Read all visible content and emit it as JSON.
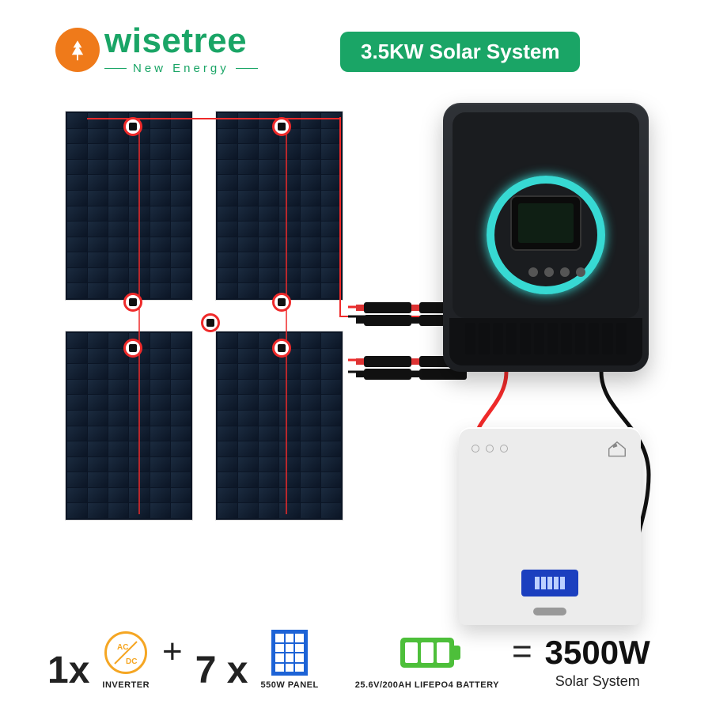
{
  "brand": {
    "name_part1": "wise",
    "name_part2": "tree",
    "tagline": "New Energy",
    "primary_color": "#1aa566",
    "sun_color": "#ef7a1a"
  },
  "title": "3.5KW Solar System",
  "title_bg": "#1aa566",
  "title_text_color": "#ffffff",
  "panels": {
    "count_shown": 4,
    "cell_grid": {
      "cols": 6,
      "rows": 12
    },
    "cell_dark": "#0b1525",
    "cell_light": "#1b2b3f",
    "frame_color": "#dcdcdc"
  },
  "wires": {
    "red": "#ef2a2a",
    "black": "#111111"
  },
  "inverter": {
    "ring_color": "#37d9d3",
    "body_color": "#1c1e21"
  },
  "battery_box": {
    "body_color": "#ececec",
    "lcd_color": "#1b3fbf"
  },
  "equation": {
    "inverter_qty": "1",
    "inverter_x": "x",
    "inverter_icon_text1": "AC",
    "inverter_icon_text2": "DC",
    "inverter_label": "INVERTER",
    "inverter_icon_color": "#f5a623",
    "plus": "+",
    "panel_qty": "7",
    "panel_x": "x",
    "panel_label": "550W PANEL",
    "panel_icon_color": "#1d63d6",
    "battery_label": "25.6V/200AH LIFEPO4 BATTERY",
    "battery_icon_color": "#4dbf3a",
    "equals": "=",
    "result_value": "3500W",
    "result_label": "Solar System"
  }
}
